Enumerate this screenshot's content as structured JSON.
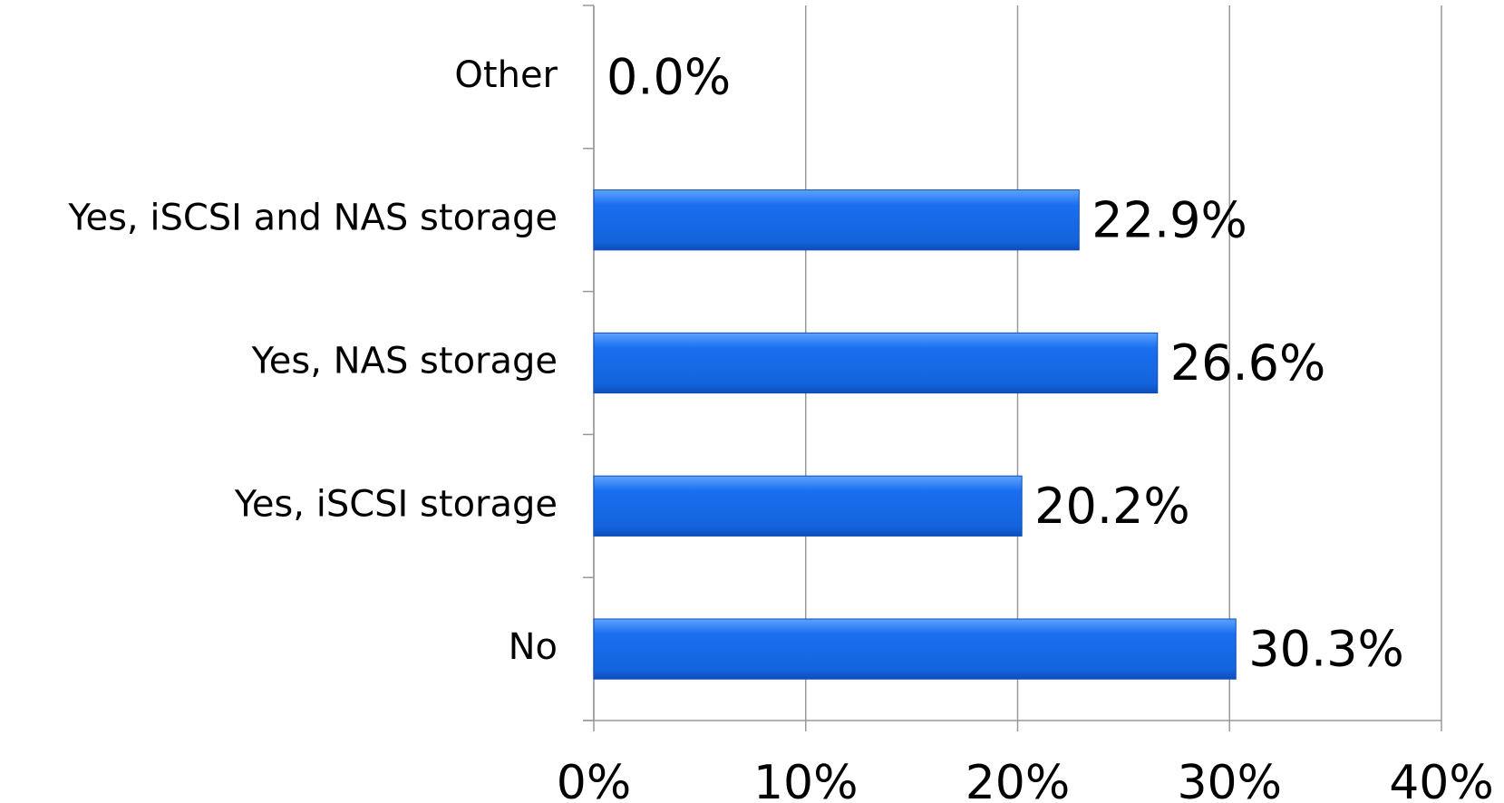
{
  "chart_data": {
    "type": "barh",
    "categories": [
      "Other",
      "Yes, iSCSI and NAS storage",
      "Yes, NAS storage",
      "Yes, iSCSI storage",
      "No"
    ],
    "values": [
      0,
      22.9,
      26.6,
      20.2,
      30.3
    ],
    "value_labels": [
      "0.0%",
      "22.9%",
      "26.6%",
      "20.2%",
      "30.3%"
    ],
    "color": "#1a6ff0",
    "xlim": [
      0,
      40
    ],
    "xticks": [
      {
        "value": 0,
        "label": "0%"
      },
      {
        "value": 10,
        "label": "10%"
      },
      {
        "value": 20,
        "label": "20%"
      },
      {
        "value": 30,
        "label": "30%"
      },
      {
        "value": 40,
        "label": "40%"
      }
    ],
    "grid": true
  }
}
